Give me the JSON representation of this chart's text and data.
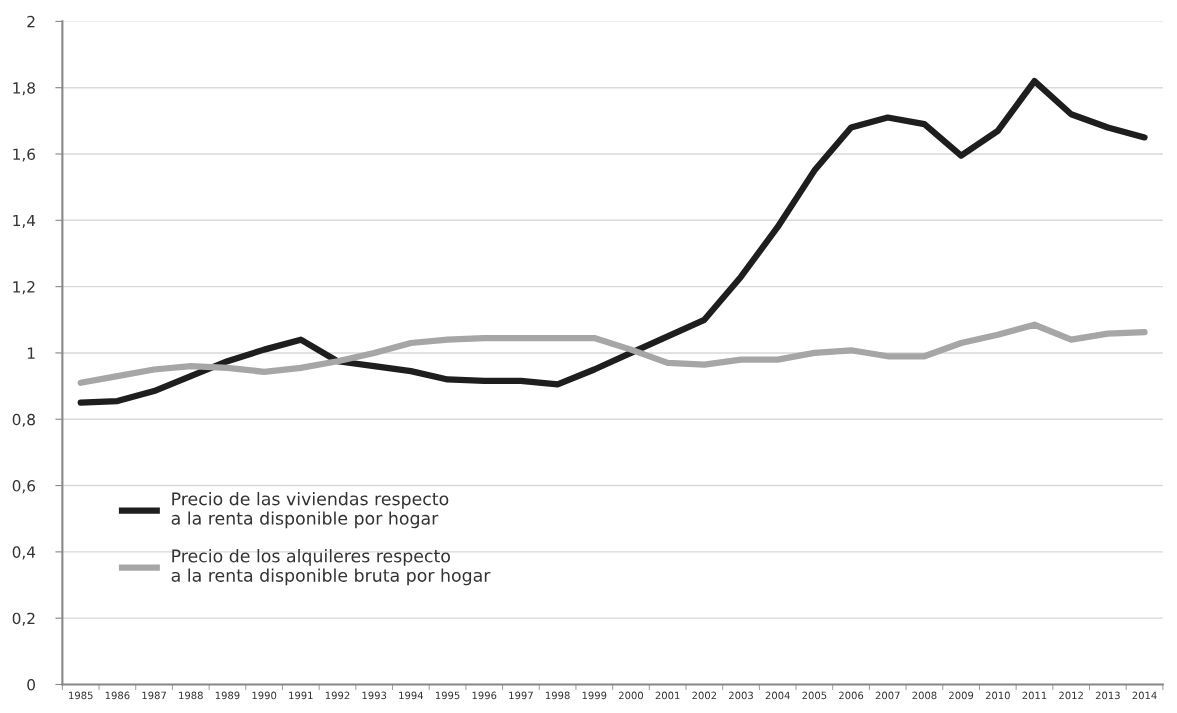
{
  "chart_data": {
    "type": "line",
    "categories": [
      "1985",
      "1986",
      "1987",
      "1988",
      "1989",
      "1990",
      "1991",
      "1992",
      "1993",
      "1994",
      "1995",
      "1996",
      "1997",
      "1998",
      "1999",
      "2000",
      "2001",
      "2002",
      "2003",
      "2004",
      "2005",
      "2006",
      "2007",
      "2008",
      "2009",
      "2010",
      "2011",
      "2012",
      "2013",
      "2014"
    ],
    "series": [
      {
        "name": "Precio de las viviendas respecto\na la renta disponible por hogar",
        "color": "#1e1e1e",
        "values": [
          0.85,
          0.855,
          0.885,
          0.93,
          0.975,
          1.01,
          1.04,
          0.975,
          0.96,
          0.945,
          0.92,
          0.916,
          0.916,
          0.905,
          0.95,
          1.0,
          1.05,
          1.1,
          1.23,
          1.38,
          1.55,
          1.68,
          1.71,
          1.69,
          1.595,
          1.67,
          1.82,
          1.72,
          1.68,
          1.65
        ]
      },
      {
        "name": "Precio de los alquileres respecto\na la renta disponible bruta por hogar",
        "color": "#a6a6a6",
        "values": [
          0.91,
          0.93,
          0.95,
          0.96,
          0.955,
          0.943,
          0.955,
          0.975,
          1.0,
          1.03,
          1.04,
          1.045,
          1.045,
          1.045,
          1.045,
          1.01,
          0.97,
          0.965,
          0.98,
          0.98,
          1.0,
          1.008,
          0.99,
          0.99,
          1.03,
          1.055,
          1.085,
          1.04,
          1.058,
          1.063
        ]
      }
    ],
    "ylim": [
      0,
      2
    ],
    "yticks": [
      0,
      {
        "value": 0.2,
        "label": "0,2"
      },
      {
        "value": 0.4,
        "label": "0,4"
      },
      {
        "value": 0.6,
        "label": "0,6"
      },
      {
        "value": 0.8,
        "label": "0,8"
      },
      1,
      {
        "value": 1.2,
        "label": "1,2"
      },
      {
        "value": 1.4,
        "label": "1,4"
      },
      {
        "value": 1.6,
        "label": "1,6"
      },
      {
        "value": 1.8,
        "label": "1,8"
      },
      2
    ],
    "grid": "y",
    "legend": "left",
    "marker": "none",
    "line_style": "solid"
  }
}
